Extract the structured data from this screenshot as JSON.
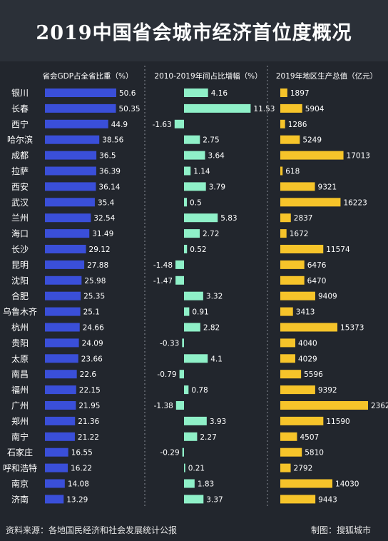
{
  "title": "2019中国省会城市经济首位度概况",
  "footer": {
    "source": "资料来源：各地国民经济和社会发展统计公报",
    "credit": "制图：搜狐城市"
  },
  "colors": {
    "blue": "#3a4fd9",
    "green": "#8ff0c8",
    "gold": "#f6c42a",
    "background": "#22262d",
    "header": "#2b3038"
  },
  "chart_data": {
    "type": "bar",
    "categories": [
      "银川",
      "长春",
      "西宁",
      "哈尔滨",
      "成都",
      "拉萨",
      "西安",
      "武汉",
      "兰州",
      "海口",
      "长沙",
      "昆明",
      "沈阳",
      "合肥",
      "乌鲁木齐",
      "杭州",
      "贵阳",
      "太原",
      "南昌",
      "福州",
      "广州",
      "郑州",
      "南宁",
      "石家庄",
      "呼和浩特",
      "南京",
      "济南"
    ],
    "series": [
      {
        "name": "省会GDP占全省比重（%）",
        "values": [
          50.6,
          50.35,
          44.9,
          38.56,
          36.5,
          36.39,
          36.14,
          35.4,
          32.54,
          31.49,
          29.12,
          27.88,
          25.98,
          25.35,
          25.1,
          24.66,
          24.09,
          23.66,
          22.6,
          22.15,
          21.95,
          21.36,
          21.22,
          16.55,
          16.22,
          14.08,
          13.29
        ],
        "color": "#3a4fd9"
      },
      {
        "name": "2010-2019年间占比增幅（%）",
        "values": [
          4.16,
          11.53,
          -1.63,
          2.75,
          3.64,
          1.14,
          3.79,
          0.5,
          5.83,
          2.72,
          0.52,
          -1.48,
          -1.47,
          3.32,
          0.91,
          2.82,
          -0.33,
          4.1,
          -0.79,
          0.78,
          -1.38,
          3.93,
          2.27,
          -0.29,
          0.21,
          1.83,
          3.37
        ],
        "color": "#8ff0c8"
      },
      {
        "name": "2019年地区生产总值（亿元）",
        "values": [
          1897,
          5904,
          1286,
          5249,
          17013,
          618,
          9321,
          16223,
          2837,
          1672,
          11574,
          6476,
          6470,
          9409,
          3413,
          15373,
          4040,
          4029,
          5596,
          9392,
          23629,
          11590,
          4507,
          5810,
          2792,
          14030,
          9443
        ],
        "color": "#f6c42a"
      }
    ]
  }
}
